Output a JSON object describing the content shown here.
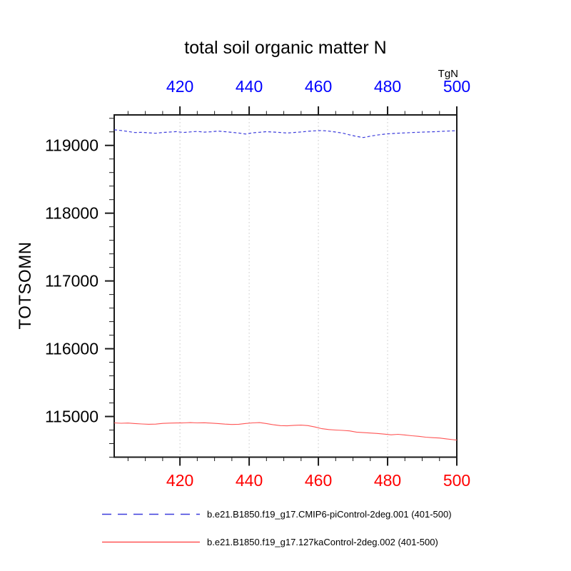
{
  "title": "total soil organic matter N",
  "top_axis": {
    "unit_label": "TgN",
    "tick_labels": [
      "420",
      "440",
      "460",
      "480",
      "500"
    ],
    "color": "#0000ff"
  },
  "bottom_axis": {
    "tick_labels": [
      "420",
      "440",
      "460",
      "480",
      "500"
    ],
    "color": "#ff0000"
  },
  "y_axis": {
    "label": "TOTSOMN",
    "tick_labels": [
      "115000",
      "116000",
      "117000",
      "118000",
      "119000"
    ]
  },
  "colors": {
    "axis": "#1a1a1a",
    "grid": "#c6c6c6",
    "top_labels": "#0000ff",
    "bottom_labels": "#ff0000",
    "text": "#000000",
    "background": "#ffffff"
  },
  "legend": [
    {
      "label": "b.e21.B1850.f19_g17.CMIP6-piControl-2deg.001 (401-500)",
      "color": "#3c3cdc",
      "style": "dashed"
    },
    {
      "label": "b.e21.B1850.f19_g17.127kaControl-2deg.002 (401-500)",
      "color": "#ff5555",
      "style": "solid"
    }
  ],
  "chart_data": {
    "type": "line",
    "title": "total soil organic matter N",
    "xlabel": "",
    "ylabel": "TOTSOMN",
    "unit": "TgN",
    "xlim": [
      401,
      500
    ],
    "ylim": [
      114400,
      119450
    ],
    "x_major_ticks": [
      420,
      440,
      460,
      480,
      500
    ],
    "x_minor_step": 5,
    "y_major_ticks": [
      115000,
      116000,
      117000,
      118000,
      119000
    ],
    "y_minor_step": 200,
    "grid": "vertical-dotted",
    "legend_position": "bottom",
    "x": [
      401,
      403,
      405,
      407,
      409,
      411,
      413,
      415,
      417,
      419,
      421,
      423,
      425,
      427,
      429,
      431,
      433,
      435,
      437,
      439,
      441,
      443,
      445,
      447,
      449,
      451,
      453,
      455,
      457,
      459,
      461,
      463,
      465,
      467,
      469,
      471,
      473,
      475,
      477,
      479,
      481,
      483,
      485,
      487,
      489,
      491,
      493,
      495,
      497,
      500
    ],
    "series": [
      {
        "name": "b.e21.B1850.f19_g17.CMIP6-piControl-2deg.001 (401-500)",
        "color": "#3c3cdc",
        "style": "dashed",
        "width": 1.2,
        "values": [
          119230,
          119220,
          119206,
          119190,
          119193,
          119186,
          119179,
          119191,
          119197,
          119204,
          119191,
          119199,
          119207,
          119196,
          119201,
          119211,
          119203,
          119193,
          119183,
          119168,
          119186,
          119194,
          119203,
          119197,
          119191,
          119183,
          119191,
          119198,
          119209,
          119215,
          119219,
          119211,
          119197,
          119182,
          119156,
          119133,
          119116,
          119136,
          119153,
          119166,
          119174,
          119180,
          119185,
          119190,
          119194,
          119198,
          119201,
          119206,
          119211,
          119217
        ]
      },
      {
        "name": "b.e21.B1850.f19_g17.127kaControl-2deg.002 (401-500)",
        "color": "#ff5555",
        "style": "solid",
        "width": 1.1,
        "values": [
          114905,
          114900,
          114903,
          114896,
          114890,
          114886,
          114888,
          114898,
          114902,
          114904,
          114905,
          114910,
          114906,
          114908,
          114902,
          114896,
          114888,
          114882,
          114885,
          114897,
          114905,
          114910,
          114896,
          114878,
          114865,
          114862,
          114870,
          114873,
          114866,
          114845,
          114820,
          114808,
          114800,
          114795,
          114788,
          114770,
          114762,
          114756,
          114750,
          114740,
          114730,
          114737,
          114728,
          114716,
          114708,
          114695,
          114688,
          114682,
          114670,
          114652
        ]
      }
    ]
  }
}
